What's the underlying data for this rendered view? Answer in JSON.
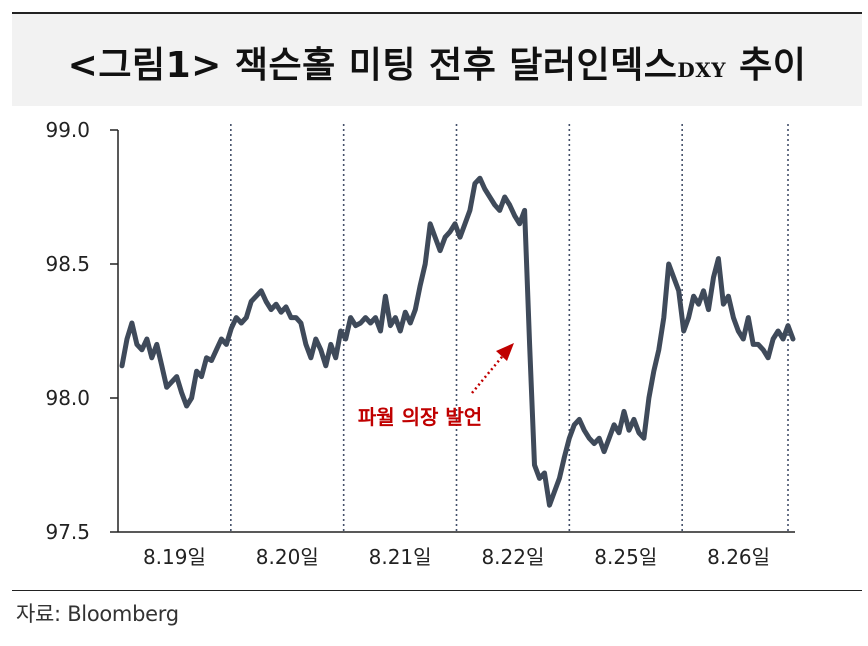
{
  "title": {
    "prefix": "<그림1>",
    "main": "잭슨홀 미팅 전후 달러인덱스",
    "sub": "DXY",
    "suffix": "추이"
  },
  "source": "자료: Bloomberg",
  "colors": {
    "line": "#3f4a5a",
    "annotation": "#c00000",
    "grid": "#44506a"
  },
  "chart_data": {
    "type": "line",
    "title": "<그림1> 잭슨홀 미팅 전후 달러인덱스DXY 추이",
    "xlabel": "",
    "ylabel": "",
    "ylim": [
      97.5,
      99.0
    ],
    "yticks": [
      "99.0",
      "98.5",
      "98.0",
      "97.5"
    ],
    "grid": "vertical dotted day separators",
    "legend": "none",
    "days": [
      "8.19일",
      "8.20일",
      "8.21일",
      "8.22일",
      "8.25일",
      "8.26일"
    ],
    "annotation": "파월 의장 발언",
    "series": [
      {
        "values": [
          98.12,
          98.22,
          98.28,
          98.2,
          98.18,
          98.22,
          98.15,
          98.2,
          98.12,
          98.04,
          98.06,
          98.08,
          98.02,
          97.97,
          98.0,
          98.1,
          98.08,
          98.15,
          98.14,
          98.18,
          98.22,
          98.2,
          98.26,
          98.3,
          98.28,
          98.3,
          98.36,
          98.38,
          98.4,
          98.36,
          98.33,
          98.35,
          98.32,
          98.34,
          98.3,
          98.3,
          98.28,
          98.2,
          98.15,
          98.22,
          98.18,
          98.12,
          98.2,
          98.15,
          98.25,
          98.22,
          98.3,
          98.27,
          98.28,
          98.3,
          98.28,
          98.3,
          98.25,
          98.38,
          98.27,
          98.3,
          98.25,
          98.32,
          98.28,
          98.33,
          98.42,
          98.5,
          98.65,
          98.6,
          98.55,
          98.6,
          98.62,
          98.65,
          98.6,
          98.65,
          98.7,
          98.8,
          98.82,
          98.78,
          98.75,
          98.72,
          98.7,
          98.75,
          98.72,
          98.68,
          98.65,
          98.7,
          98.2,
          97.75,
          97.7,
          97.72,
          97.6,
          97.65,
          97.7,
          97.78,
          97.85,
          97.9,
          97.92,
          97.88,
          97.85,
          97.83,
          97.85,
          97.8,
          97.85,
          97.9,
          97.87,
          97.95,
          97.88,
          97.92,
          97.87,
          97.85,
          98.0,
          98.1,
          98.18,
          98.3,
          98.5,
          98.45,
          98.4,
          98.25,
          98.3,
          98.38,
          98.35,
          98.4,
          98.33,
          98.45,
          98.52,
          98.35,
          98.38,
          98.3,
          98.25,
          98.22,
          98.3,
          98.2,
          98.2,
          98.18,
          98.15,
          98.22,
          98.25,
          98.22,
          98.27,
          98.22
        ]
      }
    ]
  }
}
